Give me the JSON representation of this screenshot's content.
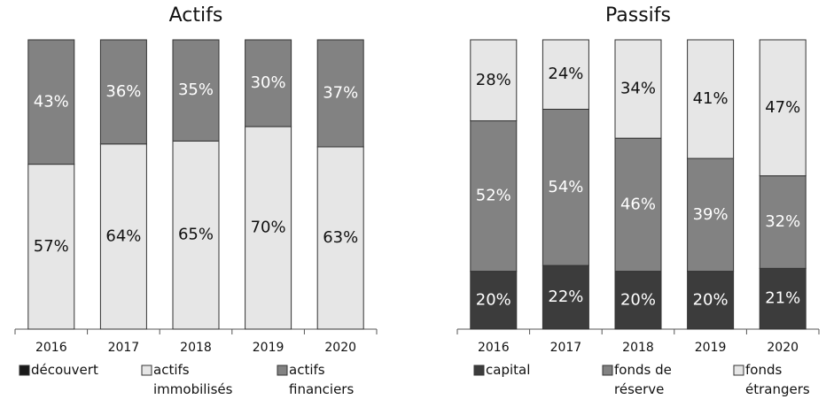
{
  "chart_data": [
    {
      "type": "stacked_bar",
      "title": "Actifs",
      "categories": [
        "2016",
        "2017",
        "2018",
        "2019",
        "2020"
      ],
      "ylim": [
        0,
        100
      ],
      "series": [
        {
          "name": "découvert",
          "color": "#1a1a1a",
          "values": [
            0,
            0,
            0,
            0,
            0
          ]
        },
        {
          "name": "actifs immobilisés",
          "color": "#e6e6e6",
          "values": [
            57,
            64,
            65,
            70,
            63
          ],
          "value_labels": [
            "57%",
            "64%",
            "65%",
            "70%",
            "63%"
          ]
        },
        {
          "name": "actifs financiers",
          "color": "#828282",
          "values": [
            43,
            36,
            35,
            30,
            37
          ],
          "value_labels": [
            "43%",
            "36%",
            "35%",
            "30%",
            "37%"
          ]
        }
      ]
    },
    {
      "type": "stacked_bar",
      "title": "Passifs",
      "categories": [
        "2016",
        "2017",
        "2018",
        "2019",
        "2020"
      ],
      "ylim": [
        0,
        100
      ],
      "series": [
        {
          "name": "capital",
          "color": "#3c3c3c",
          "values": [
            20,
            22,
            20,
            20,
            21
          ],
          "value_labels": [
            "20%",
            "22%",
            "20%",
            "20%",
            "21%"
          ]
        },
        {
          "name": "fonds de réserve",
          "color": "#828282",
          "values": [
            52,
            54,
            46,
            39,
            32
          ],
          "value_labels": [
            "52%",
            "54%",
            "46%",
            "39%",
            "32%"
          ]
        },
        {
          "name": "fonds étrangers",
          "color": "#e6e6e6",
          "values": [
            28,
            24,
            34,
            41,
            47
          ],
          "value_labels": [
            "28%",
            "24%",
            "34%",
            "41%",
            "47%"
          ]
        }
      ]
    }
  ]
}
